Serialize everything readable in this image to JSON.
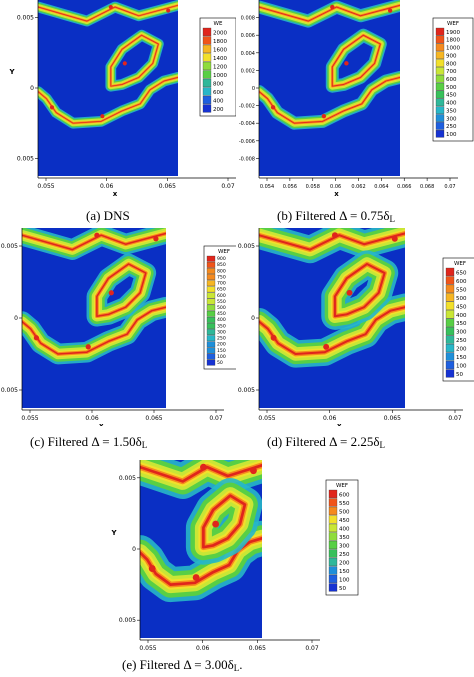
{
  "chart_data": [
    {
      "type": "heatmap",
      "caption": "(a) DNS",
      "cap_parts": [
        "(a) DNS",
        "",
        ""
      ],
      "xlabel": "x",
      "ylabel": "Y",
      "xticks": [
        "0.055",
        "0.06",
        "0.065",
        "0.07"
      ],
      "yticks": [
        "0.005",
        "0",
        "0.005"
      ],
      "legend_title": "WE",
      "legend_levels": [
        "2000",
        "1800",
        "1600",
        "1400",
        "1200",
        "1000",
        "800",
        "600",
        "400",
        "200"
      ],
      "spread": 0.8
    },
    {
      "type": "heatmap",
      "caption": "(b) Filtered Δ = 0.75δL",
      "cap_parts": [
        "(b) Filtered Δ = 0.75δ",
        "L",
        ""
      ],
      "xlabel": "x",
      "ylabel": "Y",
      "xticks": [
        "0.054",
        "0.056",
        "0.058",
        "0.06",
        "0.062",
        "0.064",
        "0.066",
        "0.068",
        "0.07"
      ],
      "yticks": [
        "0.008",
        "0.006",
        "0.004",
        "0.002",
        "0",
        "-0.002",
        "-0.004",
        "-0.006",
        "-0.008"
      ],
      "legend_title": "WEF",
      "legend_levels": [
        "1900",
        "1800",
        "1000",
        "900",
        "800",
        "700",
        "600",
        "500",
        "450",
        "400",
        "350",
        "300",
        "250",
        "100"
      ],
      "spread": 1.0
    },
    {
      "type": "heatmap",
      "caption": "(c) Filtered Δ = 1.50δL",
      "cap_parts": [
        "(c) Filtered Δ = 1.50δ",
        "L",
        ""
      ],
      "xlabel": "x",
      "ylabel": "Y",
      "xticks": [
        "0.055",
        "0.06",
        "0.065",
        "0.07"
      ],
      "yticks": [
        "0.005",
        "0",
        "0.005"
      ],
      "legend_title": "WEF",
      "legend_levels": [
        "900",
        "850",
        "800",
        "750",
        "700",
        "650",
        "600",
        "550",
        "500",
        "450",
        "400",
        "350",
        "300",
        "250",
        "200",
        "150",
        "100",
        "50"
      ],
      "spread": 1.7
    },
    {
      "type": "heatmap",
      "caption": "(d) Filtered Δ = 2.25δL",
      "cap_parts": [
        "(d) Filtered Δ = 2.25δ",
        "L",
        ""
      ],
      "xlabel": "x",
      "ylabel": "Y",
      "xticks": [
        "0.055",
        "0.06",
        "0.065",
        "0.07"
      ],
      "yticks": [
        "0.005",
        "0",
        "0.005"
      ],
      "legend_title": "WEF",
      "legend_levels": [
        "650",
        "600",
        "550",
        "500",
        "450",
        "400",
        "350",
        "300",
        "250",
        "200",
        "150",
        "100",
        "50"
      ],
      "spread": 2.3
    },
    {
      "type": "heatmap",
      "caption": "(e) Filtered Δ = 3.00δL.",
      "cap_parts": [
        "(e) Filtered Δ = 3.00δ",
        "L",
        "."
      ],
      "xlabel": "x",
      "ylabel": "Y",
      "xticks": [
        "0.055",
        "0.06",
        "0.065",
        "0.07"
      ],
      "yticks": [
        "0.005",
        "0",
        "0.005"
      ],
      "legend_title": "WEF",
      "legend_levels": [
        "600",
        "550",
        "500",
        "450",
        "400",
        "350",
        "300",
        "250",
        "200",
        "150",
        "100",
        "50"
      ],
      "spread": 3.0
    }
  ],
  "colors": {
    "background": "#0a2fc4",
    "legend_scale": [
      "#e0251c",
      "#f0541a",
      "#f58a1e",
      "#f6b623",
      "#f2e02b",
      "#c9e636",
      "#8fdc3c",
      "#58cf45",
      "#37c05b",
      "#2fb89a",
      "#27b7c8",
      "#1f8fd9",
      "#1e5fe0",
      "#1632d2"
    ]
  }
}
